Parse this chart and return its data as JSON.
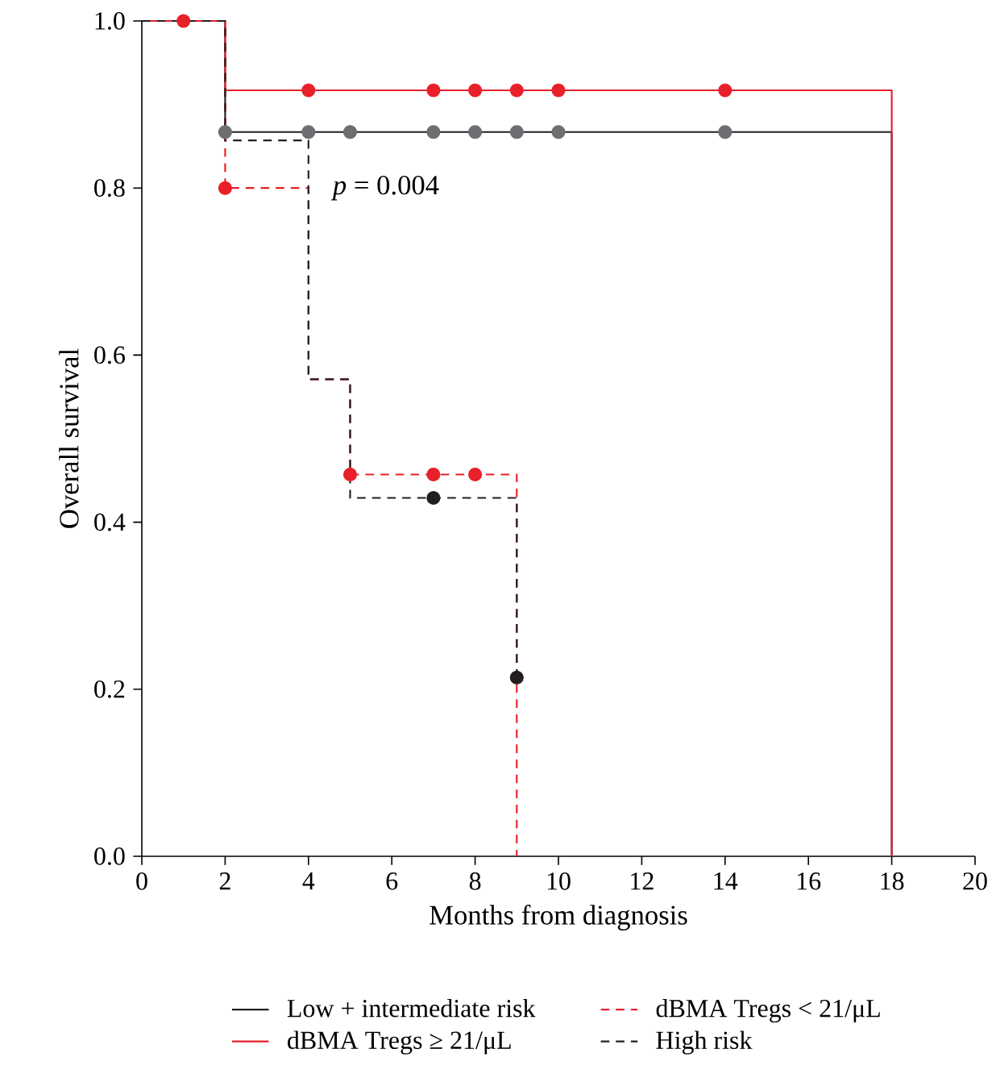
{
  "chart_data": {
    "type": "step",
    "xlabel": "Months from diagnosis",
    "ylabel": "Overall survival",
    "xlim": [
      0,
      20
    ],
    "ylim": [
      0,
      1.0
    ],
    "xticks": [
      0,
      2,
      4,
      6,
      8,
      10,
      12,
      14,
      16,
      18,
      20
    ],
    "yticks": [
      {
        "value": 0,
        "label": "0.0"
      },
      {
        "value": 0.2,
        "label": "0.2"
      },
      {
        "value": 0.4,
        "label": "0.4"
      },
      {
        "value": 0.6,
        "label": "0.6"
      },
      {
        "value": 0.8,
        "label": "0.8"
      },
      {
        "value": 1.0,
        "label": "1.0"
      }
    ],
    "legend": "bottom",
    "annotations": [
      "*p* = 0.004"
    ],
    "series": [
      {
        "name": "Low + intermediate risk",
        "color": "#231f20",
        "line_style": "solid",
        "x": [
          0,
          2,
          18
        ],
        "values": [
          1.0,
          0.867,
          0
        ]
      },
      {
        "name": "dBMA Tregs < 21/μL",
        "color": "#e8202a",
        "line_style": "dashed",
        "x": [
          0,
          2,
          4,
          5,
          9
        ],
        "values": [
          1.0,
          0.8,
          0.571,
          0.457,
          0
        ]
      },
      {
        "name": "dBMA Tregs ≥ 21/μL",
        "color": "#e8202a",
        "line_style": "solid",
        "x": [
          0,
          2,
          18
        ],
        "values": [
          1.0,
          0.917,
          0
        ]
      },
      {
        "name": "High risk",
        "color": "#231f20",
        "line_style": "dashed",
        "x": [
          0,
          2,
          4,
          5,
          9
        ],
        "values": [
          1.0,
          0.857,
          0.571,
          0.429,
          0.214
        ]
      },
      {
        "type": "scatter",
        "color": "#6d6e71",
        "x": [
          2,
          4,
          5,
          7,
          8,
          9,
          10,
          14
        ],
        "values": [
          0.867,
          0.867,
          0.867,
          0.867,
          0.867,
          0.867,
          0.867,
          0.867
        ]
      },
      {
        "type": "scatter",
        "color": "#e8202a",
        "x": [
          1,
          4,
          7,
          8,
          9,
          10,
          14
        ],
        "values": [
          1.0,
          0.917,
          0.917,
          0.917,
          0.917,
          0.917,
          0.917
        ]
      },
      {
        "type": "scatter",
        "color": "#e8202a",
        "x": [
          2,
          5,
          7,
          8
        ],
        "values": [
          0.8,
          0.457,
          0.457,
          0.457
        ]
      },
      {
        "type": "scatter",
        "color": "#231f20",
        "x": [
          7,
          9
        ],
        "values": [
          0.429,
          0.214
        ]
      }
    ]
  }
}
